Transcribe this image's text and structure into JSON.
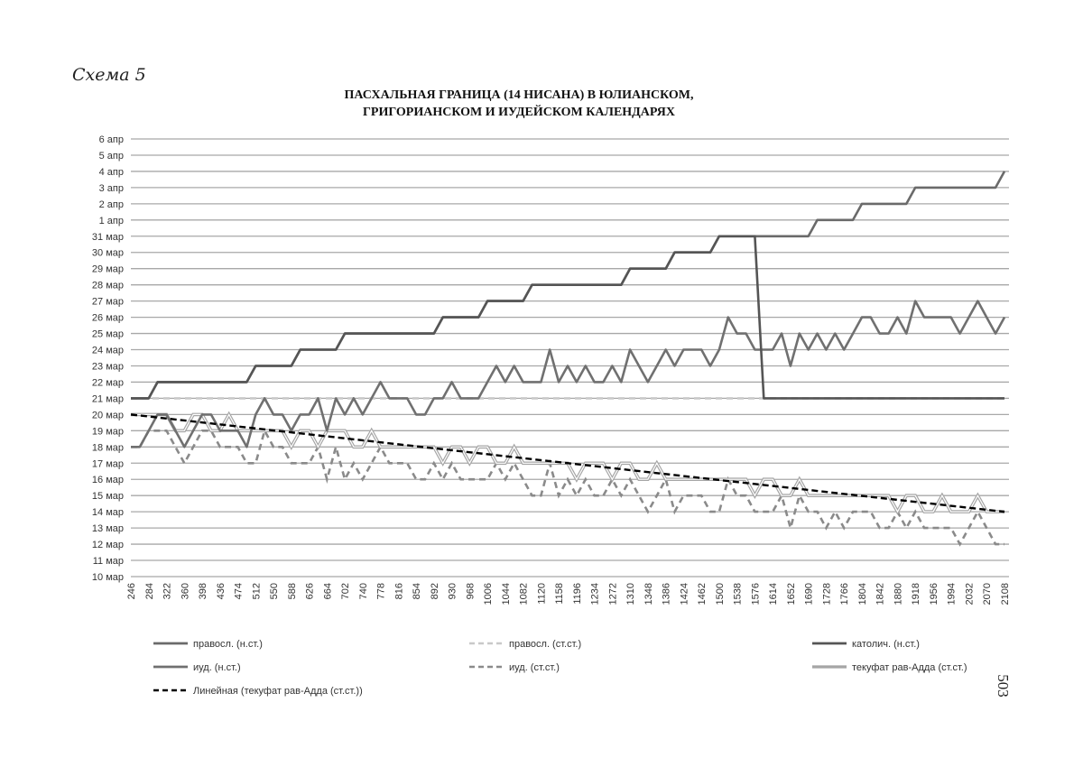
{
  "scheme_label": "Схема 5",
  "page_number": "503",
  "chart_data": {
    "type": "line",
    "title": [
      "ПАСХАЛЬНАЯ ГРАНИЦА (14 НИСАНА) В ЮЛИАНСКОМ,",
      "ГРИГОРИАНСКОМ И ИУДЕЙСКОМ КАЛЕНДАРЯХ"
    ],
    "xlabel": "",
    "ylabel": "",
    "x_start": 246,
    "x_step": 19,
    "n_points": 99,
    "x_tick_labels": [
      "246",
      "284",
      "322",
      "360",
      "398",
      "436",
      "474",
      "512",
      "550",
      "588",
      "626",
      "664",
      "702",
      "740",
      "778",
      "816",
      "854",
      "892",
      "930",
      "968",
      "1006",
      "1044",
      "1082",
      "1120",
      "1158",
      "1196",
      "1234",
      "1272",
      "1310",
      "1348",
      "1386",
      "1424",
      "1462",
      "1500",
      "1538",
      "1576",
      "1614",
      "1652",
      "1690",
      "1728",
      "1766",
      "1804",
      "1842",
      "1880",
      "1918",
      "1956",
      "1994",
      "2032",
      "2070",
      "2108"
    ],
    "ylim": [
      10,
      37
    ],
    "y_tick_labels": [
      "10 мар",
      "11 мар",
      "12 мар",
      "13 мар",
      "14 мар",
      "15 мар",
      "16 мар",
      "17 мар",
      "18 мар",
      "19 мар",
      "20 мар",
      "21 мар",
      "22 мар",
      "23 мар",
      "24 мар",
      "25 мар",
      "26 мар",
      "27 мар",
      "28 мар",
      "29 мар",
      "30 мар",
      "31 мар",
      "1 апр",
      "2 апр",
      "3 апр",
      "4 апр",
      "5 апр",
      "6 апр"
    ],
    "grid": true,
    "legend_position": "bottom",
    "series": [
      {
        "name": "правосл. (н.ст.)",
        "style": "solid",
        "color": "#6a6a6a",
        "values": [
          21,
          21,
          21,
          22,
          22,
          22,
          22,
          22,
          22,
          22,
          22,
          22,
          22,
          22,
          23,
          23,
          23,
          23,
          23,
          24,
          24,
          24,
          24,
          24,
          25,
          25,
          25,
          25,
          25,
          25,
          25,
          25,
          25,
          25,
          25,
          26,
          26,
          26,
          26,
          26,
          27,
          27,
          27,
          27,
          27,
          28,
          28,
          28,
          28,
          28,
          28,
          28,
          28,
          28,
          28,
          28,
          29,
          29,
          29,
          29,
          29,
          30,
          30,
          30,
          30,
          30,
          31,
          31,
          31,
          31,
          31,
          31,
          31,
          31,
          31,
          31,
          31,
          32,
          32,
          32,
          32,
          32,
          33,
          33,
          33,
          33,
          33,
          33,
          34,
          34,
          34,
          34,
          34,
          34,
          34,
          34,
          34,
          34,
          35
        ]
      },
      {
        "name": "правосл. (ст.ст.)",
        "style": "dashed",
        "color": "#c9c9c9",
        "values": [
          21,
          21,
          21,
          21,
          21,
          21,
          21,
          21,
          21,
          21,
          21,
          21,
          21,
          21,
          21,
          21,
          21,
          21,
          21,
          21,
          21,
          21,
          21,
          21,
          21,
          21,
          21,
          21,
          21,
          21,
          21,
          21,
          21,
          21,
          21,
          21,
          21,
          21,
          21,
          21,
          21,
          21,
          21,
          21,
          21,
          21,
          21,
          21,
          21,
          21,
          21,
          21,
          21,
          21,
          21,
          21,
          21,
          21,
          21,
          21,
          21,
          21,
          21,
          21,
          21,
          21,
          21,
          21,
          21,
          21,
          21,
          21,
          21,
          21,
          21,
          21,
          21,
          21,
          21,
          21,
          21,
          21,
          21,
          21,
          21,
          21,
          21,
          21,
          21,
          21,
          21,
          21,
          21,
          21,
          21,
          21,
          21,
          21,
          21
        ]
      },
      {
        "name": "католич. (н.ст.)",
        "style": "solid",
        "color": "#555555",
        "values": [
          21,
          21,
          21,
          22,
          22,
          22,
          22,
          22,
          22,
          22,
          22,
          22,
          22,
          22,
          23,
          23,
          23,
          23,
          23,
          24,
          24,
          24,
          24,
          24,
          25,
          25,
          25,
          25,
          25,
          25,
          25,
          25,
          25,
          25,
          25,
          26,
          26,
          26,
          26,
          26,
          27,
          27,
          27,
          27,
          27,
          28,
          28,
          28,
          28,
          28,
          28,
          28,
          28,
          28,
          28,
          28,
          29,
          29,
          29,
          29,
          29,
          30,
          30,
          30,
          30,
          30,
          31,
          31,
          31,
          31,
          31,
          21,
          21,
          21,
          21,
          21,
          21,
          21,
          21,
          21,
          21,
          21,
          21,
          21,
          21,
          21,
          21,
          21,
          21,
          21,
          21,
          21,
          21,
          21,
          21,
          21,
          21,
          21,
          21
        ]
      },
      {
        "name": "иуд. (н.ст.)",
        "style": "solid",
        "color": "#707070",
        "values": [
          18,
          18,
          19,
          20,
          20,
          19,
          18,
          19,
          20,
          20,
          19,
          19,
          19,
          18,
          20,
          21,
          20,
          20,
          19,
          20,
          20,
          21,
          19,
          21,
          20,
          21,
          20,
          21,
          22,
          21,
          21,
          21,
          20,
          20,
          21,
          21,
          22,
          21,
          21,
          21,
          22,
          23,
          22,
          23,
          22,
          22,
          22,
          24,
          22,
          23,
          22,
          23,
          22,
          22,
          23,
          22,
          24,
          23,
          22,
          23,
          24,
          23,
          24,
          24,
          24,
          23,
          24,
          26,
          25,
          25,
          24,
          24,
          24,
          25,
          23,
          25,
          24,
          25,
          24,
          25,
          24,
          25,
          26,
          26,
          25,
          25,
          26,
          25,
          27,
          26,
          26,
          26,
          26,
          25,
          26,
          27,
          26,
          25,
          26
        ]
      },
      {
        "name": "иуд. (ст.ст.)",
        "style": "dashed",
        "color": "#8a8a8a",
        "values": [
          18,
          18,
          19,
          19,
          19,
          18,
          17,
          18,
          19,
          19,
          18,
          18,
          18,
          17,
          17,
          19,
          18,
          18,
          17,
          17,
          17,
          18,
          16,
          18,
          16,
          17,
          16,
          17,
          18,
          17,
          17,
          17,
          16,
          16,
          17,
          16,
          17,
          16,
          16,
          16,
          16,
          17,
          16,
          17,
          16,
          15,
          15,
          17,
          15,
          16,
          15,
          16,
          15,
          15,
          16,
          15,
          16,
          15,
          14,
          15,
          16,
          14,
          15,
          15,
          15,
          14,
          14,
          16,
          15,
          15,
          14,
          14,
          14,
          15,
          13,
          15,
          14,
          14,
          13,
          14,
          13,
          14,
          14,
          14,
          13,
          13,
          14,
          13,
          14,
          13,
          13,
          13,
          13,
          12,
          13,
          14,
          13,
          12,
          12
        ]
      },
      {
        "name": "текуфат рав-Адда (ст.ст.)",
        "style": "double",
        "color": "#a5a5a5",
        "values": [
          20,
          20,
          20,
          20,
          20,
          19,
          19,
          20,
          20,
          19,
          19,
          20,
          19,
          19,
          19,
          19,
          19,
          19,
          18,
          19,
          19,
          18,
          19,
          19,
          19,
          18,
          18,
          19,
          18,
          18,
          18,
          18,
          18,
          18,
          18,
          17,
          18,
          18,
          17,
          18,
          18,
          17,
          17,
          18,
          17,
          17,
          17,
          17,
          17,
          17,
          16,
          17,
          17,
          17,
          16,
          17,
          17,
          16,
          16,
          17,
          16,
          16,
          16,
          16,
          16,
          16,
          16,
          16,
          16,
          16,
          15,
          16,
          16,
          15,
          15,
          16,
          15,
          15,
          15,
          15,
          15,
          15,
          15,
          15,
          15,
          15,
          14,
          15,
          15,
          14,
          14,
          15,
          14,
          14,
          14,
          15,
          14,
          14,
          14
        ]
      },
      {
        "name": "Линейная (текуфат рав-Адда (ст.ст.))",
        "style": "trend",
        "color": "#000000",
        "values": [
          20,
          14
        ]
      }
    ]
  }
}
